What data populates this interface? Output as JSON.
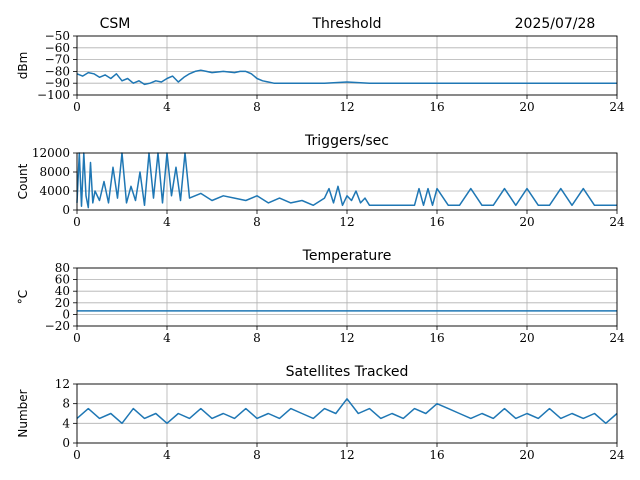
{
  "header": {
    "left": "CSM",
    "center": "Threshold",
    "right": "2025/07/28"
  },
  "colors": {
    "series": "#1f77b4",
    "grid": "#b0b0b0"
  },
  "chart_data": [
    {
      "type": "line",
      "title": "Threshold",
      "ylabel": "dBm",
      "xlim": [
        0,
        24
      ],
      "ylim": [
        -100,
        -50
      ],
      "xticks": [
        "0",
        "4",
        "8",
        "12",
        "16",
        "20",
        "24"
      ],
      "yticks": [
        "−50",
        "−60",
        "−70",
        "−80",
        "−90",
        "−100"
      ],
      "yticks_values": [
        -50,
        -60,
        -70,
        -80,
        -90,
        -100
      ],
      "grid": true,
      "x": [
        0,
        0.25,
        0.5,
        0.75,
        1,
        1.25,
        1.5,
        1.75,
        2,
        2.25,
        2.5,
        2.75,
        3,
        3.25,
        3.5,
        3.75,
        4,
        4.25,
        4.5,
        4.75,
        5,
        5.25,
        5.5,
        5.75,
        6,
        6.5,
        7,
        7.25,
        7.5,
        7.75,
        8,
        8.25,
        8.5,
        8.75,
        9,
        10,
        11,
        12,
        13,
        14,
        15,
        16,
        17,
        18,
        19,
        20,
        21,
        22,
        23,
        24
      ],
      "y": [
        -82,
        -84,
        -81,
        -82,
        -85,
        -83,
        -86,
        -82,
        -88,
        -86,
        -90,
        -88,
        -91,
        -90,
        -88,
        -89,
        -86,
        -84,
        -89,
        -85,
        -82,
        -80,
        -79,
        -80,
        -81,
        -80,
        -81,
        -80,
        -80,
        -82,
        -86,
        -88,
        -89,
        -90,
        -90,
        -90,
        -90,
        -89,
        -90,
        -90,
        -90,
        -90,
        -90,
        -90,
        -90,
        -90,
        -90,
        -90,
        -90,
        -90
      ]
    },
    {
      "type": "line",
      "title": "Triggers/sec",
      "ylabel": "Count",
      "xlim": [
        0,
        24
      ],
      "ylim": [
        0,
        12000
      ],
      "xticks": [
        "0",
        "4",
        "8",
        "12",
        "16",
        "20",
        "24"
      ],
      "yticks": [
        "12000",
        "8000",
        "4000",
        "0"
      ],
      "yticks_values": [
        12000,
        8000,
        4000,
        0
      ],
      "grid": true,
      "x": [
        0,
        0.1,
        0.2,
        0.3,
        0.4,
        0.5,
        0.6,
        0.7,
        0.8,
        1,
        1.2,
        1.4,
        1.6,
        1.8,
        2,
        2.2,
        2.4,
        2.6,
        2.8,
        3,
        3.2,
        3.4,
        3.6,
        3.8,
        4,
        4.2,
        4.4,
        4.6,
        4.8,
        5,
        5.5,
        6,
        6.5,
        7,
        7.5,
        8,
        8.5,
        9,
        9.5,
        10,
        10.5,
        11,
        11.2,
        11.4,
        11.6,
        11.8,
        12,
        12.2,
        12.4,
        12.6,
        12.8,
        13,
        13.5,
        14,
        14.5,
        15,
        15.2,
        15.4,
        15.6,
        15.8,
        16,
        16.5,
        17,
        17.5,
        18,
        18.5,
        19,
        19.5,
        20,
        20.5,
        21,
        21.5,
        22,
        22.5,
        23,
        23.5,
        24
      ],
      "y": [
        1500,
        12000,
        800,
        12000,
        3000,
        500,
        10000,
        1500,
        4000,
        2000,
        6000,
        1500,
        9000,
        2500,
        12000,
        1500,
        5000,
        2000,
        8000,
        1000,
        12000,
        2500,
        12000,
        1500,
        12000,
        3000,
        9000,
        2000,
        12000,
        2500,
        3500,
        2000,
        3000,
        2500,
        2000,
        3000,
        1500,
        2500,
        1500,
        2000,
        1000,
        2500,
        4500,
        1500,
        5000,
        1000,
        3000,
        2000,
        4000,
        1500,
        2500,
        1000,
        1000,
        1000,
        1000,
        1000,
        4500,
        1000,
        4500,
        1000,
        4500,
        1000,
        1000,
        4500,
        1000,
        1000,
        4500,
        1000,
        4500,
        1000,
        1000,
        4500,
        1000,
        4500,
        1000,
        1000,
        1000
      ]
    },
    {
      "type": "line",
      "title": "Temperature",
      "ylabel": "°C",
      "xlim": [
        0,
        24
      ],
      "ylim": [
        -20,
        80
      ],
      "xticks": [
        "0",
        "4",
        "8",
        "12",
        "16",
        "20",
        "24"
      ],
      "yticks": [
        "80",
        "60",
        "40",
        "20",
        "0",
        "−20"
      ],
      "yticks_values": [
        80,
        60,
        40,
        20,
        0,
        -20
      ],
      "grid": true,
      "x": [
        0,
        24
      ],
      "y": [
        6,
        6
      ]
    },
    {
      "type": "line",
      "title": "Satellites Tracked",
      "ylabel": "Number",
      "xlim": [
        0,
        24
      ],
      "ylim": [
        0,
        12
      ],
      "xticks": [
        "0",
        "4",
        "8",
        "12",
        "16",
        "20",
        "24"
      ],
      "yticks": [
        "12",
        "8",
        "4",
        "0"
      ],
      "yticks_values": [
        12,
        8,
        4,
        0
      ],
      "grid": true,
      "x": [
        0,
        0.5,
        1,
        1.5,
        2,
        2.5,
        3,
        3.5,
        4,
        4.5,
        5,
        5.5,
        6,
        6.5,
        7,
        7.5,
        8,
        8.5,
        9,
        9.5,
        10,
        10.5,
        11,
        11.5,
        12,
        12.5,
        13,
        13.5,
        14,
        14.5,
        15,
        15.5,
        16,
        16.5,
        17,
        17.5,
        18,
        18.5,
        19,
        19.5,
        20,
        20.5,
        21,
        21.5,
        22,
        22.5,
        23,
        23.5,
        24
      ],
      "y": [
        5,
        7,
        5,
        6,
        4,
        7,
        5,
        6,
        4,
        6,
        5,
        7,
        5,
        6,
        5,
        7,
        5,
        6,
        5,
        7,
        6,
        5,
        7,
        6,
        9,
        6,
        7,
        5,
        6,
        5,
        7,
        6,
        8,
        7,
        6,
        5,
        6,
        5,
        7,
        5,
        6,
        5,
        7,
        5,
        6,
        5,
        6,
        4,
        6
      ]
    }
  ]
}
